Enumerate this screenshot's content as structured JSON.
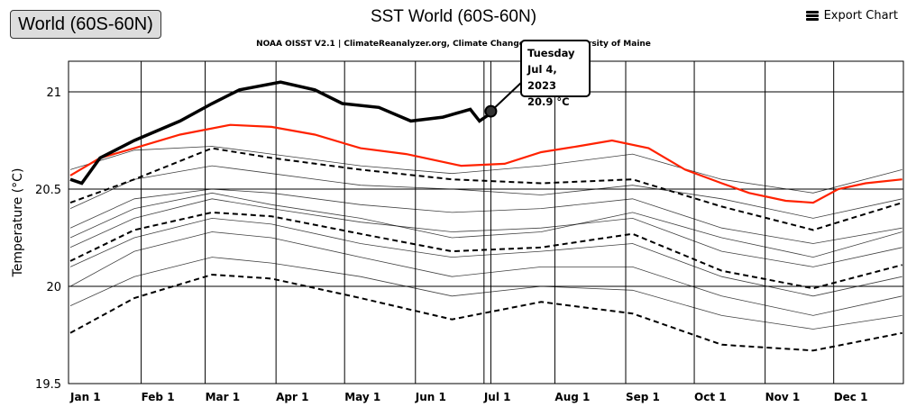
{
  "region_button": {
    "label": "World (60S-60N)"
  },
  "export": {
    "label": "Export Chart",
    "icon": "hamburger-menu-icon"
  },
  "chart_data": {
    "type": "line",
    "title": "SST World (60S-60N)",
    "subtitle_left": "NOAA OISST V2.1 | ClimateReanalyzer.org, Climate Change",
    "subtitle_right": "rsity of Maine",
    "ylabel": "Temperature (°C)",
    "xlabel": "",
    "ylim": [
      19.5,
      21.15
    ],
    "yticks": [
      19.5,
      20,
      20.5,
      21
    ],
    "ytick_labels": [
      "19.5",
      "20",
      "20.5",
      "21"
    ],
    "xticks_day": [
      0,
      31,
      59,
      90,
      120,
      151,
      181,
      212,
      243,
      273,
      304,
      334
    ],
    "xtick_labels": [
      "Jan 1",
      "Feb 1",
      "Mar 1",
      "Apr 1",
      "May 1",
      "Jun 1",
      "Jul 1",
      "Aug 1",
      "Sep 1",
      "Oct 1",
      "Nov 1",
      "Dec 1"
    ],
    "grid": true,
    "legend": "none",
    "colors": {
      "highlight": "#000000",
      "red": "#ff2200",
      "background": "#000000"
    },
    "background_days": [
      0,
      28,
      62,
      88,
      127,
      167,
      206,
      246,
      285,
      325,
      364
    ],
    "background_series": [
      [
        20.4,
        20.55,
        20.62,
        20.58,
        20.52,
        20.5,
        20.47,
        20.52,
        20.45,
        20.35,
        20.45
      ],
      [
        20.3,
        20.45,
        20.5,
        20.48,
        20.42,
        20.38,
        20.4,
        20.45,
        20.3,
        20.22,
        20.3
      ],
      [
        20.2,
        20.35,
        20.45,
        20.4,
        20.33,
        20.28,
        20.3,
        20.35,
        20.18,
        20.1,
        20.2
      ],
      [
        20.1,
        20.25,
        20.35,
        20.32,
        20.22,
        20.15,
        20.18,
        20.22,
        20.05,
        19.95,
        20.05
      ],
      [
        20.0,
        20.18,
        20.28,
        20.25,
        20.15,
        20.05,
        20.1,
        20.1,
        19.95,
        19.85,
        19.95
      ],
      [
        19.9,
        20.05,
        20.15,
        20.12,
        20.05,
        19.95,
        20.0,
        19.98,
        19.85,
        19.78,
        19.85
      ],
      [
        20.25,
        20.4,
        20.48,
        20.42,
        20.35,
        20.25,
        20.28,
        20.38,
        20.25,
        20.15,
        20.28
      ],
      [
        20.6,
        20.7,
        20.72,
        20.68,
        20.62,
        20.58,
        20.62,
        20.68,
        20.55,
        20.48,
        20.6
      ]
    ],
    "dashed_series": [
      [
        20.43,
        20.55,
        20.71,
        20.66,
        20.6,
        20.55,
        20.53,
        20.55,
        20.41,
        20.29,
        20.43
      ],
      [
        20.13,
        20.29,
        20.38,
        20.36,
        20.27,
        20.18,
        20.2,
        20.27,
        20.08,
        19.99,
        20.11
      ],
      [
        19.76,
        19.94,
        20.06,
        20.04,
        19.94,
        19.83,
        19.92,
        19.86,
        19.7,
        19.67,
        19.76
      ]
    ],
    "red_series": {
      "days": [
        0,
        13,
        28,
        48,
        70,
        88,
        107,
        127,
        147,
        171,
        190,
        206,
        222,
        237,
        253,
        269,
        285,
        297,
        313,
        325,
        336,
        348,
        364
      ],
      "values": [
        20.57,
        20.66,
        20.71,
        20.78,
        20.83,
        20.82,
        20.78,
        20.71,
        20.68,
        20.62,
        20.63,
        20.69,
        20.72,
        20.75,
        20.71,
        20.6,
        20.53,
        20.48,
        20.44,
        20.43,
        20.5,
        20.53,
        20.55
      ]
    },
    "highlight_series": {
      "days": [
        0,
        5,
        13,
        28,
        48,
        62,
        74,
        92,
        107,
        119,
        135,
        149,
        163,
        175,
        179,
        184
      ],
      "values": [
        20.55,
        20.53,
        20.66,
        20.75,
        20.85,
        20.94,
        21.01,
        21.05,
        21.01,
        20.94,
        20.92,
        20.85,
        20.87,
        20.91,
        20.85,
        20.89
      ]
    },
    "tooltip": {
      "day": 184,
      "value": 20.9,
      "weekday": "Tuesday",
      "date": "Jul 4, 2023",
      "value_label": "20.9 °C"
    }
  }
}
